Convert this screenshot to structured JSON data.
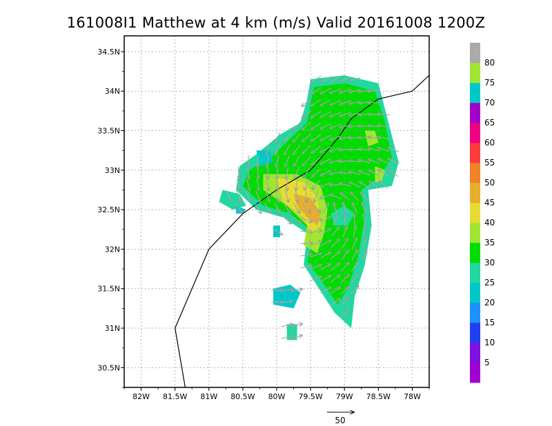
{
  "chart_data": {
    "type": "heatmap",
    "title": "161008I1 Matthew at 4 km (m/s) Valid 20161008 1200Z",
    "x_ticks": [
      "82W",
      "81.5W",
      "81W",
      "80.5W",
      "80W",
      "79.5W",
      "79W",
      "78.5W",
      "78W"
    ],
    "x_tick_values": [
      -82,
      -81.5,
      -81,
      -80.5,
      -80,
      -79.5,
      -79,
      -78.5,
      -78
    ],
    "y_ticks": [
      "30.5N",
      "31N",
      "31.5N",
      "32N",
      "32.5N",
      "33N",
      "33.5N",
      "34N",
      "34.5N"
    ],
    "y_tick_values": [
      30.5,
      31,
      31.5,
      32,
      32.5,
      33,
      33.5,
      34,
      34.5
    ],
    "xlim": [
      -82.25,
      -77.75
    ],
    "ylim": [
      30.25,
      34.7
    ],
    "grid": true,
    "colorbar": {
      "levels": [
        "5",
        "10",
        "15",
        "20",
        "25",
        "30",
        "35",
        "40",
        "45",
        "50",
        "55",
        "60",
        "65",
        "70",
        "75",
        "80"
      ],
      "colors": [
        "#a000d0",
        "#8010e0",
        "#2040f0",
        "#1e90ff",
        "#00c8c8",
        "#20d8a0",
        "#00dc00",
        "#a0e632",
        "#e6dc32",
        "#e6af2d",
        "#f08228",
        "#fa3c3c",
        "#f00082",
        "#a000c8",
        "#00c8c8",
        "#a0e632",
        "#aaaaaa"
      ]
    },
    "reference_vector": {
      "label": "50",
      "value": 50
    },
    "coastline": [
      [
        -81.35,
        30.25
      ],
      [
        -81.5,
        31.0
      ],
      [
        -81.0,
        32.0
      ],
      [
        -80.5,
        32.45
      ],
      [
        -80.0,
        32.75
      ],
      [
        -79.5,
        33.0
      ],
      [
        -79.1,
        33.4
      ],
      [
        -78.9,
        33.65
      ],
      [
        -78.5,
        33.9
      ],
      [
        -78.0,
        34.0
      ],
      [
        -77.75,
        34.2
      ]
    ],
    "regions": [
      {
        "value": 25,
        "points": [
          [
            -79.5,
            34.15
          ],
          [
            -79.0,
            34.2
          ],
          [
            -78.5,
            34.1
          ],
          [
            -78.35,
            33.6
          ],
          [
            -78.2,
            33.1
          ],
          [
            -78.3,
            32.8
          ],
          [
            -78.65,
            32.75
          ],
          [
            -78.6,
            32.3
          ],
          [
            -78.7,
            31.8
          ],
          [
            -78.85,
            31.4
          ],
          [
            -78.9,
            31.0
          ],
          [
            -79.15,
            31.2
          ],
          [
            -79.45,
            31.6
          ],
          [
            -79.6,
            31.8
          ],
          [
            -79.55,
            32.2
          ],
          [
            -79.9,
            32.4
          ],
          [
            -80.3,
            32.5
          ],
          [
            -80.6,
            32.75
          ],
          [
            -80.55,
            33.05
          ],
          [
            -80.3,
            33.2
          ],
          [
            -79.95,
            33.45
          ],
          [
            -79.65,
            33.6
          ],
          [
            -79.55,
            33.9
          ]
        ]
      },
      {
        "value": 30,
        "points": [
          [
            -79.45,
            34.05
          ],
          [
            -79.0,
            34.1
          ],
          [
            -78.55,
            34.0
          ],
          [
            -78.4,
            33.6
          ],
          [
            -78.3,
            33.15
          ],
          [
            -78.5,
            32.9
          ],
          [
            -78.75,
            32.75
          ],
          [
            -78.7,
            32.4
          ],
          [
            -78.8,
            31.9
          ],
          [
            -78.95,
            31.5
          ],
          [
            -79.1,
            31.3
          ],
          [
            -79.3,
            31.55
          ],
          [
            -79.55,
            31.85
          ],
          [
            -79.45,
            32.2
          ],
          [
            -79.8,
            32.45
          ],
          [
            -80.2,
            32.55
          ],
          [
            -80.5,
            32.8
          ],
          [
            -80.4,
            33.0
          ],
          [
            -80.1,
            33.15
          ],
          [
            -79.8,
            33.4
          ],
          [
            -79.55,
            33.6
          ],
          [
            -79.5,
            33.85
          ]
        ]
      },
      {
        "value": 35,
        "points": [
          [
            -80.2,
            32.95
          ],
          [
            -79.7,
            32.95
          ],
          [
            -79.35,
            32.8
          ],
          [
            -79.25,
            32.5
          ],
          [
            -79.3,
            32.2
          ],
          [
            -79.4,
            31.95
          ],
          [
            -79.6,
            32.05
          ],
          [
            -79.55,
            32.3
          ],
          [
            -79.85,
            32.55
          ],
          [
            -80.2,
            32.75
          ]
        ]
      },
      {
        "value": 40,
        "points": [
          [
            -80.0,
            32.9
          ],
          [
            -79.6,
            32.85
          ],
          [
            -79.4,
            32.65
          ],
          [
            -79.35,
            32.3
          ],
          [
            -79.5,
            32.2
          ],
          [
            -79.6,
            32.4
          ],
          [
            -79.9,
            32.6
          ]
        ]
      },
      {
        "value": 45,
        "points": [
          [
            -79.75,
            32.7
          ],
          [
            -79.5,
            32.65
          ],
          [
            -79.35,
            32.45
          ],
          [
            -79.4,
            32.3
          ],
          [
            -79.55,
            32.4
          ],
          [
            -79.7,
            32.55
          ]
        ]
      },
      {
        "value": 25,
        "points": [
          [
            -79.2,
            32.45
          ],
          [
            -79.0,
            32.55
          ],
          [
            -78.85,
            32.45
          ],
          [
            -78.95,
            32.3
          ],
          [
            -79.15,
            32.3
          ]
        ]
      },
      {
        "value": 35,
        "points": [
          [
            -78.7,
            33.5
          ],
          [
            -78.55,
            33.5
          ],
          [
            -78.5,
            33.35
          ],
          [
            -78.65,
            33.3
          ]
        ]
      },
      {
        "value": 35,
        "points": [
          [
            -78.55,
            33.05
          ],
          [
            -78.4,
            33.0
          ],
          [
            -78.45,
            32.85
          ],
          [
            -78.55,
            32.85
          ]
        ]
      },
      {
        "value": 25,
        "points": [
          [
            -80.8,
            32.75
          ],
          [
            -80.55,
            32.7
          ],
          [
            -80.45,
            32.55
          ],
          [
            -80.65,
            32.5
          ],
          [
            -80.85,
            32.6
          ]
        ]
      },
      {
        "value": 20,
        "points": [
          [
            -80.3,
            33.25
          ],
          [
            -80.1,
            33.25
          ],
          [
            -80.05,
            33.1
          ],
          [
            -80.25,
            33.05
          ]
        ]
      },
      {
        "value": 20,
        "points": [
          [
            -80.6,
            32.55
          ],
          [
            -80.45,
            32.5
          ],
          [
            -80.5,
            32.45
          ],
          [
            -80.6,
            32.45
          ]
        ]
      },
      {
        "value": 20,
        "points": [
          [
            -80.05,
            32.15
          ],
          [
            -79.95,
            32.15
          ],
          [
            -79.95,
            32.3
          ],
          [
            -80.05,
            32.3
          ]
        ]
      },
      {
        "value": 20,
        "points": [
          [
            -80.05,
            31.5
          ],
          [
            -79.8,
            31.55
          ],
          [
            -79.65,
            31.45
          ],
          [
            -79.75,
            31.25
          ],
          [
            -80.05,
            31.3
          ]
        ]
      },
      {
        "value": 25,
        "points": [
          [
            -79.85,
            31.05
          ],
          [
            -79.7,
            31.05
          ],
          [
            -79.7,
            30.85
          ],
          [
            -79.85,
            30.85
          ]
        ]
      }
    ]
  }
}
